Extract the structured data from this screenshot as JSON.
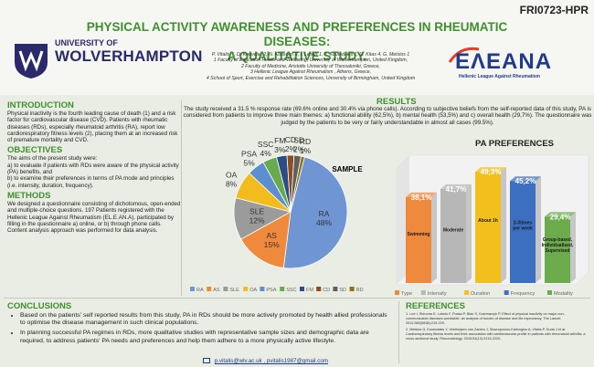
{
  "poster_code": "FRI0723-HPR",
  "title_line1": "PHYSICAL ACTIVITY AWARENESS AND PREFERENCES IN RHEUMATIC DISEASES:",
  "title_line2": "A QUALITATIVE STUDY.",
  "university": {
    "line1": "UNIVERSITY OF",
    "line2": "WOLVERHAMPTON"
  },
  "authors": [
    "P. Vitalis¹ ², D. Kouvelas 2, N. Kousouri 3, I. Lahart 1, Y. Koutedakis 1, G. Kitas 4, G. Metsios 1",
    "1 Faculty of Education Health and Wellbeing, University of Wolverhampton, United Kingdom,",
    "2 Faculty of Medicine, Aristotle University of Thessaloniki, Greece,",
    "3 Hellenic League Against Rheumatism , Athens, Greece,",
    "4 School of Sport, Exercise and Rehabilitation Sciences, University of Birmingham, United Kingdom"
  ],
  "eleana": {
    "name": "EΛΕANA",
    "sub": "Hellenic League Against Rheumatism"
  },
  "introduction": {
    "heading": "INTRODUCTION",
    "text": "Physical inactivity is the fourth leading cause of death (1) and a risk factor for cardiovascular disease (CVD). Patients with rheumatic diseases (RDs), especially rheumatoid arthritis (RA), report low cardiorespiratory fitness levels (2), placing them at an increased risk of premature mortality and CVD."
  },
  "objectives": {
    "heading": "OBJECTIVES",
    "text1": "The aims of the present study were:",
    "text2": "a) to evaluate if patients with RDs were aware of the physical activity (PA) benefits, and",
    "text3": "b) to examine their preferences in terms of PA mode and principles (i.e. intensity, duration, frequency)."
  },
  "methods": {
    "heading": "METHODS",
    "text": "We designed a questionnaire consisting of dichotomous, open-ended and multiple-choice questions. 197 Patients registered with the Hellenic League Against Rheumatism (EL.E.AN.A), participated by filling in the questionnaire a) online, or b) through phone calls. Content analysis approach was performed for data analysis."
  },
  "results": {
    "heading": "RESULTS",
    "text": "The study received a 31.5 % response rate (69.6% online and 30.4% via phone calls). According to subjective beliefs from the self-reported data of this study, PA is considered from patients to improve three main themes: a) functional ability (62,5%), b) mental health (53,5%) and c) overall health (29,7%). The questionnaire was judged by the patients to be very or fairly understandable in almost all cases (99.5%)."
  },
  "chart_data": [
    {
      "type": "pie",
      "title": "SAMPLE",
      "labels": [
        "RA",
        "AS",
        "SLE",
        "OA",
        "PSA",
        "SSC",
        "FM",
        "CD",
        "SD",
        "RD"
      ],
      "values": [
        48,
        15,
        12,
        8,
        5,
        4,
        3,
        2,
        2,
        1
      ],
      "colors": [
        "#6f95d2",
        "#ef8a3c",
        "#9b9b9b",
        "#f2bd1c",
        "#5d8fd0",
        "#68aa4c",
        "#2b4d86",
        "#8d4d1f",
        "#5f5f5f",
        "#8b7517"
      ],
      "legend": "bottom"
    },
    {
      "type": "bar",
      "title": "PA PREFERENCES",
      "categories": [
        "Type",
        "Intensity",
        "Duration",
        "Frequency",
        "Modality"
      ],
      "values": [
        38.1,
        41.7,
        49.3,
        45.2,
        29.4
      ],
      "value_labels": [
        "38,1%",
        "41,7%",
        "49,3%",
        "45,2%",
        "29,4%"
      ],
      "bar_labels": [
        "Swimming",
        "Moderate",
        "About 1h",
        "2-3times per week",
        "Group-based, Individualised, Supervised"
      ],
      "colors": [
        "#ef8a3c",
        "#b7b7b7",
        "#f2c01c",
        "#3d6fc1",
        "#6bab4c"
      ],
      "ylim": [
        0,
        55
      ],
      "legend": "bottom"
    }
  ],
  "conclusions": {
    "heading": "CONCLUSIONS",
    "items": [
      "Based on the patients' self reported results from this study, PA in RDs should be more actively promoted by health allied professionals to optimise the disease management in such clinical populations.",
      "In planning successful PA regimes in RDs, more qualitative studies with representative sample sizes and demographic data are required, to address patients' PA needs and preferences and help them adhere to a more physically active lifestyle."
    ]
  },
  "references": {
    "heading": "REFERENCES",
    "items": [
      "1. Lee I, Shiroma E, Lobelo F, Puska P, Blair S, Katzmarzyk P. Effect of physical inactivity on major non-communicable diseases worldwide: an analysis of burden of disease and life expectancy. The Lancet. 2012;380(9838):219-229.",
      "2. Metsios G, Koutedakis Y, Veldhuijzen van Zanten J, Stavropoulos-Kalinoglou A, Vitalis P, Duda J et al. Cardiorespiratory fitness levels and their association with cardiovascular profile in patients with rheumatoid arthritis: a cross-sectional study. Rheumatology. 2015;54(12):2215-2220."
    ]
  },
  "email": "p.vitalis@wlv.ac.uk , pvitalis1987@gmail.com"
}
